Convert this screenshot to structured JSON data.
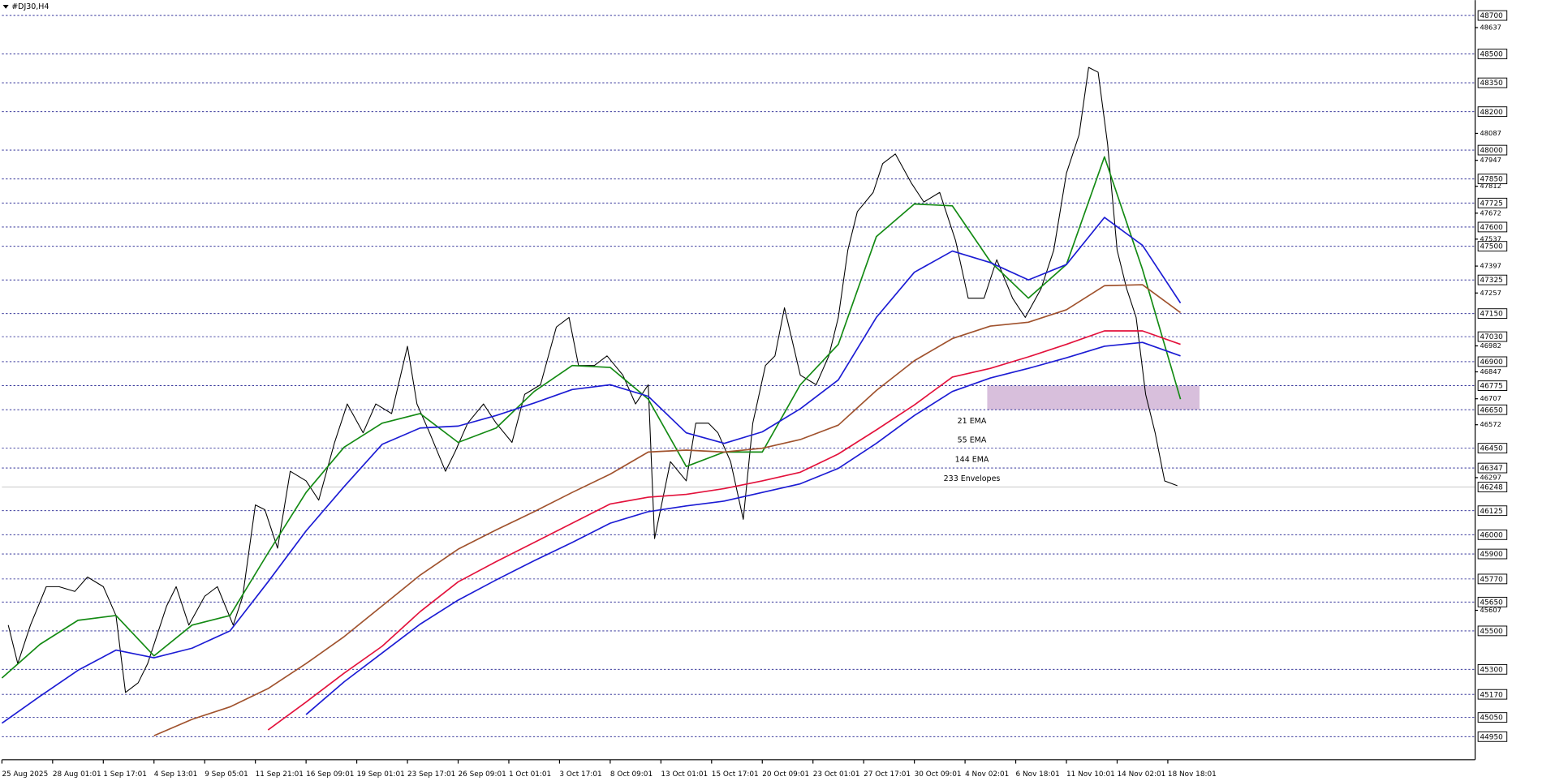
{
  "chart_data": {
    "type": "line",
    "title": "#DJ30,H4",
    "xlim": [
      0,
      465
    ],
    "ylim": [
      44830,
      48780
    ],
    "xticks": [
      {
        "value": 0,
        "label": "25 Aug 2025"
      },
      {
        "value": 16,
        "label": "28 Aug 01:01"
      },
      {
        "value": 32,
        "label": "1 Sep 17:01"
      },
      {
        "value": 48,
        "label": "4 Sep 13:01"
      },
      {
        "value": 64,
        "label": "9 Sep 05:01"
      },
      {
        "value": 80,
        "label": "11 Sep 21:01"
      },
      {
        "value": 96,
        "label": "16 Sep 09:01"
      },
      {
        "value": 112,
        "label": "19 Sep 01:01"
      },
      {
        "value": 128,
        "label": "23 Sep 17:01"
      },
      {
        "value": 144,
        "label": "26 Sep 09:01"
      },
      {
        "value": 160,
        "label": "1 Oct 01:01"
      },
      {
        "value": 176,
        "label": "3 Oct 17:01"
      },
      {
        "value": 192,
        "label": "8 Oct 09:01"
      },
      {
        "value": 208,
        "label": "13 Oct 01:01"
      },
      {
        "value": 224,
        "label": "15 Oct 17:01"
      },
      {
        "value": 240,
        "label": "20 Oct 09:01"
      },
      {
        "value": 256,
        "label": "23 Oct 01:01"
      },
      {
        "value": 272,
        "label": "27 Oct 17:01"
      },
      {
        "value": 288,
        "label": "30 Oct 09:01"
      },
      {
        "value": 304,
        "label": "4 Nov 02:01"
      },
      {
        "value": 320,
        "label": "6 Nov 18:01"
      },
      {
        "value": 336,
        "label": "11 Nov 10:01"
      },
      {
        "value": 352,
        "label": "14 Nov 02:01"
      },
      {
        "value": 368,
        "label": "18 Nov 18:01"
      }
    ],
    "yticks": [
      48637,
      48087,
      47947,
      47812,
      47672,
      47537,
      47397,
      47257,
      46982,
      46847,
      46707,
      46572,
      46297,
      45607
    ],
    "levels": [
      48700,
      48500,
      48350,
      48200,
      48000,
      47850,
      47725,
      47600,
      47500,
      47325,
      47150,
      47030,
      46900,
      46775,
      46650,
      46450,
      46347,
      46125,
      46000,
      45900,
      45770,
      45650,
      45500,
      45300,
      45170,
      45050,
      44950
    ],
    "current_price": 46248,
    "zone": {
      "x": [
        311,
        378
      ],
      "y": [
        46650,
        46775
      ],
      "color": "#d8bfdc"
    },
    "series": [
      {
        "color": "#000000",
        "x": [
          2,
          5,
          9,
          14,
          18,
          23,
          27,
          32,
          36,
          39,
          43,
          46,
          49,
          52,
          55,
          59,
          64,
          68,
          73,
          76,
          80,
          83,
          87,
          91,
          96,
          100,
          105,
          109,
          114,
          118,
          123,
          128,
          131,
          135,
          140,
          143,
          147,
          152,
          156,
          161,
          165,
          170,
          175,
          179,
          182,
          187,
          191,
          196,
          200,
          204,
          206,
          211,
          216,
          219,
          223,
          226,
          230,
          234,
          237,
          241,
          244,
          247,
          252,
          257,
          261,
          264,
          267,
          270,
          275,
          278,
          282,
          287,
          291,
          296,
          301,
          305,
          310,
          314,
          319,
          323,
          328,
          332,
          336,
          340,
          343,
          346,
          349,
          352,
          355,
          358,
          361,
          364,
          367,
          371
        ],
        "values": [
          45530,
          45330,
          45530,
          45730,
          45730,
          45705,
          45780,
          45730,
          45580,
          45180,
          45230,
          45330,
          45480,
          45630,
          45730,
          45530,
          45680,
          45730,
          45530,
          45680,
          46155,
          46130,
          45930,
          46330,
          46280,
          46180,
          46480,
          46680,
          46530,
          46680,
          46630,
          46980,
          46680,
          46530,
          46330,
          46430,
          46580,
          46680,
          46580,
          46480,
          46730,
          46780,
          47080,
          47130,
          46880,
          46880,
          46930,
          46830,
          46680,
          46780,
          45980,
          46380,
          46280,
          46580,
          46580,
          46530,
          46380,
          46080,
          46580,
          46880,
          46930,
          47180,
          46830,
          46780,
          46930,
          47130,
          47480,
          47680,
          47780,
          47930,
          47980,
          47830,
          47730,
          47780,
          47530,
          47230,
          47230,
          47430,
          47230,
          47130,
          47280,
          47480,
          47880,
          48080,
          48430,
          48405,
          48030,
          47480,
          47280,
          47130,
          46730,
          46530,
          46280,
          46255
        ]
      },
      {
        "name": "21 EMA",
        "color": "#138a13",
        "x": [
          0,
          12,
          24,
          36,
          48,
          60,
          72,
          84,
          96,
          108,
          120,
          132,
          144,
          156,
          168,
          180,
          192,
          204,
          216,
          228,
          240,
          252,
          264,
          276,
          288,
          300,
          312,
          324,
          336,
          348,
          360,
          372
        ],
        "values": [
          45255,
          45430,
          45555,
          45580,
          45370,
          45530,
          45580,
          45905,
          46220,
          46455,
          46580,
          46630,
          46480,
          46555,
          46745,
          46880,
          46870,
          46705,
          46355,
          46430,
          46430,
          46780,
          46990,
          47550,
          47720,
          47710,
          47420,
          47230,
          47405,
          47965,
          47380,
          46705
        ]
      },
      {
        "name": "55 EMA",
        "color": "#1c1cd4",
        "x": [
          0,
          12,
          24,
          36,
          48,
          60,
          72,
          84,
          96,
          108,
          120,
          132,
          144,
          156,
          168,
          180,
          192,
          204,
          216,
          228,
          240,
          252,
          264,
          276,
          288,
          300,
          312,
          324,
          336,
          348,
          360,
          372
        ],
        "values": [
          45020,
          45160,
          45295,
          45400,
          45360,
          45410,
          45500,
          45755,
          46020,
          46250,
          46470,
          46555,
          46565,
          46620,
          46685,
          46755,
          46780,
          46720,
          46530,
          46475,
          46535,
          46655,
          46805,
          47130,
          47365,
          47475,
          47415,
          47325,
          47405,
          47650,
          47505,
          47205
        ]
      },
      {
        "name": "144 EMA",
        "color": "#a0522d",
        "x": [
          0,
          12,
          24,
          36,
          48,
          60,
          72,
          84,
          96,
          108,
          120,
          132,
          144,
          156,
          168,
          180,
          192,
          204,
          216,
          228,
          240,
          252,
          264,
          276,
          288,
          300,
          312,
          324,
          336,
          348,
          360,
          372
        ],
        "values": [
          null,
          null,
          null,
          null,
          44955,
          45040,
          45105,
          45200,
          45330,
          45470,
          45630,
          45790,
          45925,
          46025,
          46120,
          46220,
          46315,
          46430,
          46440,
          46430,
          46450,
          46495,
          46570,
          46750,
          46905,
          47020,
          47085,
          47105,
          47170,
          47295,
          47300,
          47155
        ]
      },
      {
        "name": "233 Envelopes",
        "color": "#e3123c",
        "lower_color": "#1c1cd4",
        "x": [
          0,
          12,
          24,
          36,
          48,
          60,
          72,
          84,
          96,
          108,
          120,
          132,
          144,
          156,
          168,
          180,
          192,
          204,
          216,
          228,
          240,
          252,
          264,
          276,
          288,
          300,
          312,
          324,
          336,
          348,
          360,
          372
        ],
        "values": [
          null,
          null,
          null,
          null,
          null,
          null,
          null,
          44985,
          45130,
          45280,
          45420,
          45600,
          45755,
          45860,
          45960,
          46060,
          46160,
          46195,
          46210,
          46240,
          46280,
          46325,
          46420,
          46545,
          46675,
          46820,
          46865,
          46925,
          46990,
          47060,
          47060,
          46990
        ],
        "lower_values": [
          null,
          null,
          null,
          null,
          null,
          null,
          null,
          null,
          45065,
          45235,
          45385,
          45535,
          45660,
          45765,
          45865,
          45960,
          46060,
          46120,
          46150,
          46175,
          46220,
          46265,
          46345,
          46475,
          46620,
          46745,
          46815,
          46865,
          46920,
          46980,
          47000,
          46930
        ]
      }
    ]
  }
}
